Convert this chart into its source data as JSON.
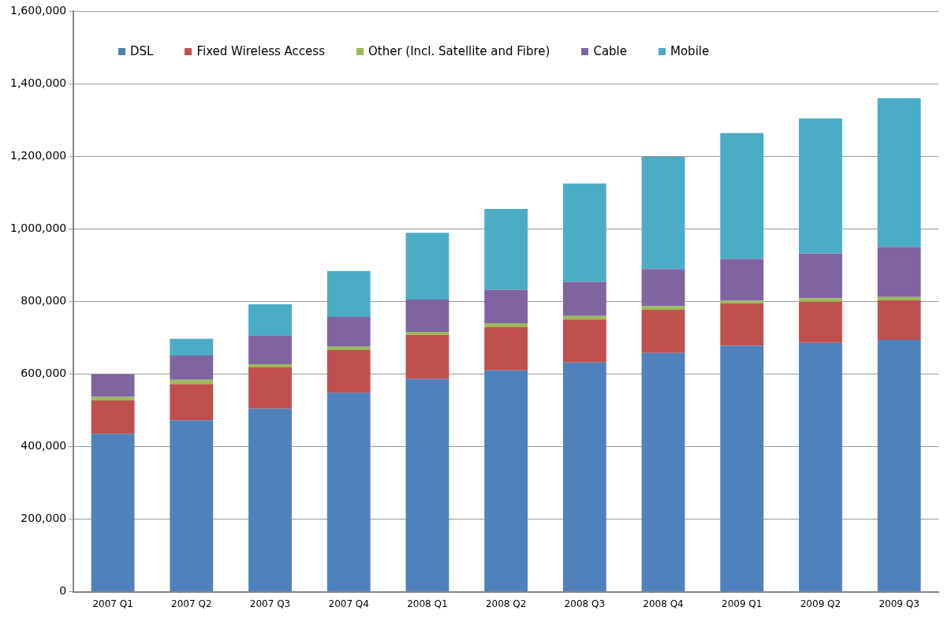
{
  "chart_data": {
    "type": "bar",
    "stacked": true,
    "grid": "y",
    "legend": "top",
    "categories": [
      "2007 Q1",
      "2007 Q2",
      "2007 Q3",
      "2007 Q4",
      "2008 Q1",
      "2008 Q2",
      "2008 Q3",
      "2008 Q4",
      "2009 Q1",
      "2009 Q2",
      "2009 Q3"
    ],
    "series": [
      {
        "name": "DSL",
        "color": "#4f81bd",
        "values": [
          435000,
          472000,
          504000,
          548000,
          586000,
          610000,
          632000,
          658000,
          678000,
          686000,
          694000
        ]
      },
      {
        "name": "Fixed Wireless Access",
        "color": "#c0504d",
        "values": [
          92000,
          100000,
          114000,
          118000,
          122000,
          119000,
          118000,
          119000,
          116000,
          113000,
          109000
        ]
      },
      {
        "name": "Other (Incl. Satellite and Fibre)",
        "color": "#9bbb59",
        "values": [
          10000,
          12000,
          9000,
          9000,
          8000,
          11000,
          10000,
          10000,
          8000,
          10000,
          9000
        ]
      },
      {
        "name": "Cable",
        "color": "#8064a2",
        "values": [
          62000,
          67000,
          78000,
          82000,
          89000,
          92000,
          94000,
          102000,
          115000,
          123000,
          138000
        ]
      },
      {
        "name": "Mobile",
        "color": "#4bacc6",
        "values": [
          0,
          46000,
          87000,
          127000,
          184000,
          223000,
          271000,
          309000,
          347000,
          372000,
          410000
        ]
      }
    ],
    "ylim": [
      0,
      1600000
    ],
    "yticks": [
      {
        "value": 0,
        "label": "0"
      },
      {
        "value": 200000,
        "label": "200,000"
      },
      {
        "value": 400000,
        "label": "400,000"
      },
      {
        "value": 600000,
        "label": "600,000"
      },
      {
        "value": 800000,
        "label": "800,000"
      },
      {
        "value": 1000000,
        "label": "1,000,000"
      },
      {
        "value": 1200000,
        "label": "1,200,000"
      },
      {
        "value": 1400000,
        "label": "1,400,000"
      },
      {
        "value": 1600000,
        "label": "1,600,000"
      }
    ]
  }
}
